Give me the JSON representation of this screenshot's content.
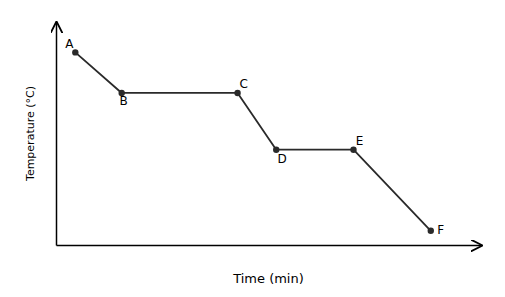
{
  "chart_data": {
    "type": "line",
    "x": [
      1,
      2.2,
      5.2,
      6.2,
      8.2,
      10.2
    ],
    "values": [
      9,
      7,
      7,
      4.2,
      4.2,
      0.2
    ],
    "color": "#2a2a2a",
    "marker": "circle",
    "xlabel": "Time (min)",
    "ylabel": "Temperature (°C)",
    "annotations": [
      {
        "text": "A",
        "x": 1,
        "y": 9
      },
      {
        "text": "B",
        "x": 2.2,
        "y": 7
      },
      {
        "text": "C",
        "x": 5.2,
        "y": 7
      },
      {
        "text": "D",
        "x": 6.2,
        "y": 4.2
      },
      {
        "text": "E",
        "x": 8.2,
        "y": 4.2
      },
      {
        "text": "F",
        "x": 10.2,
        "y": 0.2
      }
    ],
    "xlim": [
      0.5,
      11.5
    ],
    "ylim": [
      -0.5,
      10.5
    ],
    "xticks": [],
    "yticks": [],
    "tick_labels": false,
    "grid": false
  }
}
